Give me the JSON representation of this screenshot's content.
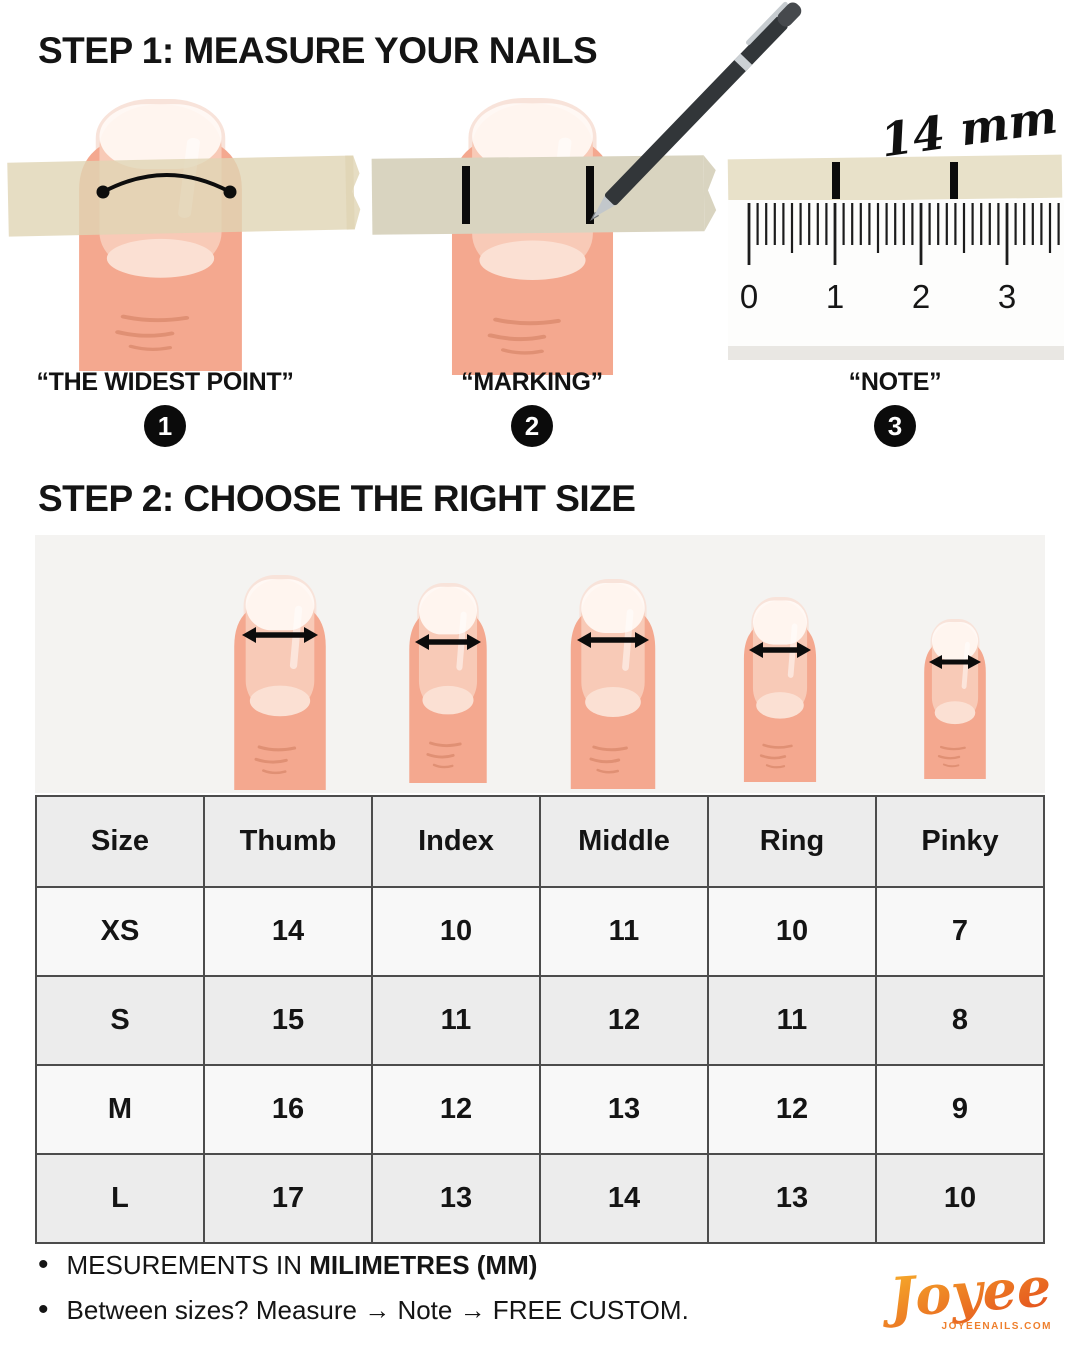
{
  "step1": {
    "title": "STEP 1: MEASURE YOUR NAILS",
    "captions": [
      {
        "label": "“THE WIDEST POINT”",
        "badge": "1"
      },
      {
        "label": "“MARKING”",
        "badge": "2"
      },
      {
        "label": "“NOTE”",
        "badge": "3"
      }
    ],
    "ruler": {
      "annotation": "14 mm",
      "ticks": [
        "0",
        "1",
        "2",
        "3"
      ]
    }
  },
  "step2": {
    "title": "STEP 2: CHOOSE THE RIGHT SIZE",
    "table": {
      "headers": [
        "Size",
        "Thumb",
        "Index",
        "Middle",
        "Ring",
        "Pinky"
      ],
      "rows": [
        [
          "XS",
          "14",
          "10",
          "11",
          "10",
          "7"
        ],
        [
          "S",
          "15",
          "11",
          "12",
          "11",
          "8"
        ],
        [
          "M",
          "16",
          "12",
          "13",
          "12",
          "9"
        ],
        [
          "L",
          "17",
          "13",
          "14",
          "13",
          "10"
        ]
      ]
    }
  },
  "notes": {
    "bullet1_prefix": "MESUREMENTS IN ",
    "bullet1_bold": "MILIMETRES (MM)",
    "bullet2": "Between sizes? Measure → Note → FREE CUSTOM."
  },
  "brand": {
    "name": "Joyee",
    "website": "JOYEENAILS.COM",
    "gradient_start": "#f8b42c",
    "gradient_end": "#e2491d"
  }
}
